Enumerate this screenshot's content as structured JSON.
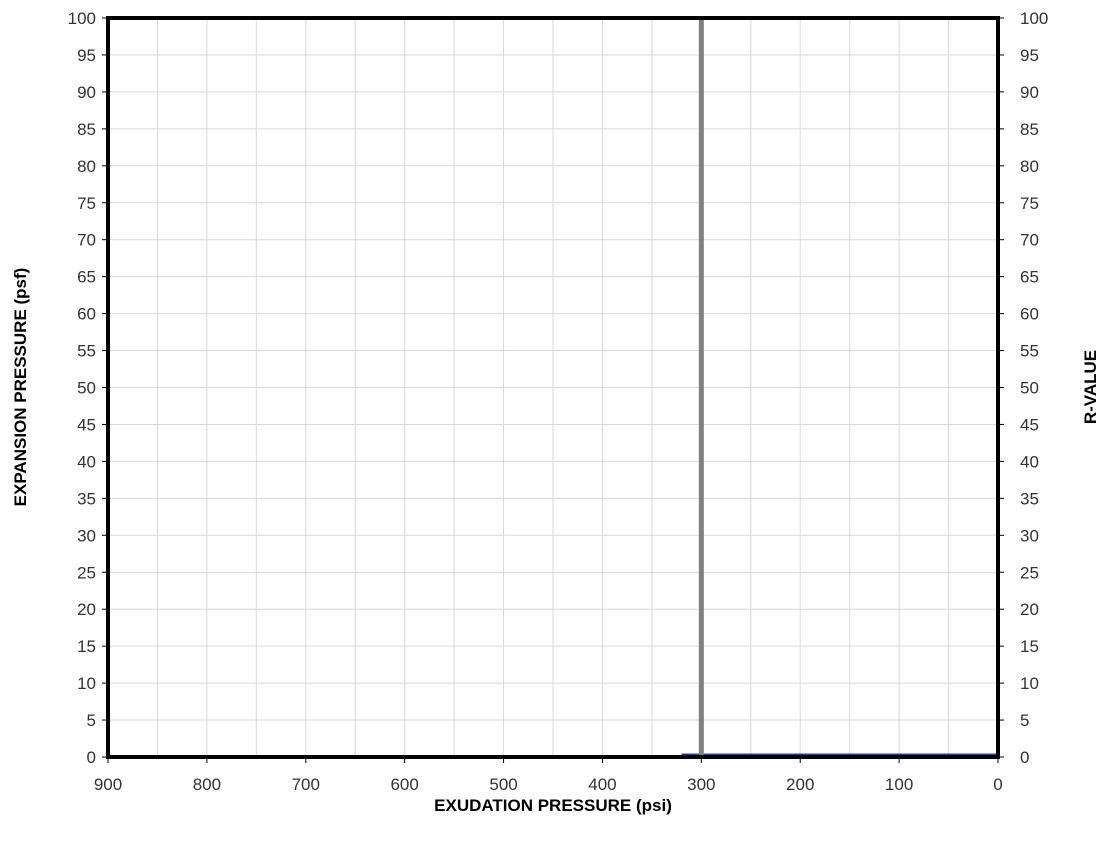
{
  "chart_data": {
    "type": "line",
    "xlabel": "EXUDATION PRESSURE (psi)",
    "ylabel": "EXPANSION PRESSURE (psf)",
    "y2label": "R-VALUE",
    "xlim": [
      900,
      0
    ],
    "x_reversed": true,
    "ylim": [
      0,
      100
    ],
    "y2lim": [
      0,
      100
    ],
    "x_ticks": [
      900,
      800,
      700,
      600,
      500,
      400,
      300,
      200,
      100,
      0
    ],
    "y_ticks": [
      0,
      5,
      10,
      15,
      20,
      25,
      30,
      35,
      40,
      45,
      50,
      55,
      60,
      65,
      70,
      75,
      80,
      85,
      90,
      95,
      100
    ],
    "y2_ticks": [
      0,
      5,
      10,
      15,
      20,
      25,
      30,
      35,
      40,
      45,
      50,
      55,
      60,
      65,
      70,
      75,
      80,
      85,
      90,
      95,
      100
    ],
    "x_minor_gridlines": [
      850,
      750,
      650,
      550,
      450,
      350,
      250,
      150,
      50
    ],
    "grid": true,
    "reference_line": {
      "x": 300,
      "color": "#808080"
    },
    "series": [
      {
        "x": [
          320,
          0
        ],
        "y": [
          0.2,
          0.2
        ],
        "color": "#2f3f8f"
      }
    ]
  }
}
